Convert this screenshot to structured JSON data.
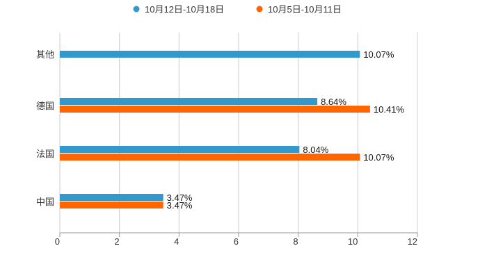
{
  "chart_data": {
    "type": "bar",
    "orientation": "horizontal",
    "categories": [
      "其他",
      "德国",
      "法国",
      "中国"
    ],
    "series": [
      {
        "name": "10月12日-10月18日",
        "color": "#3399cc",
        "values": [
          10.07,
          8.64,
          8.04,
          3.47
        ],
        "labels": [
          "10.07%",
          "8.64%",
          "8.04%",
          "3.47%"
        ]
      },
      {
        "name": "10月5日-10月11日",
        "color": "#ff6600",
        "values": [
          null,
          10.41,
          10.07,
          3.47
        ],
        "labels": [
          null,
          "10.41%",
          "10.07%",
          "3.47%"
        ]
      }
    ],
    "xlim": [
      0,
      12
    ],
    "xticks": [
      "0",
      "2",
      "4",
      "6",
      "8",
      "10",
      "12"
    ],
    "grid": true,
    "legend": "top-center"
  }
}
